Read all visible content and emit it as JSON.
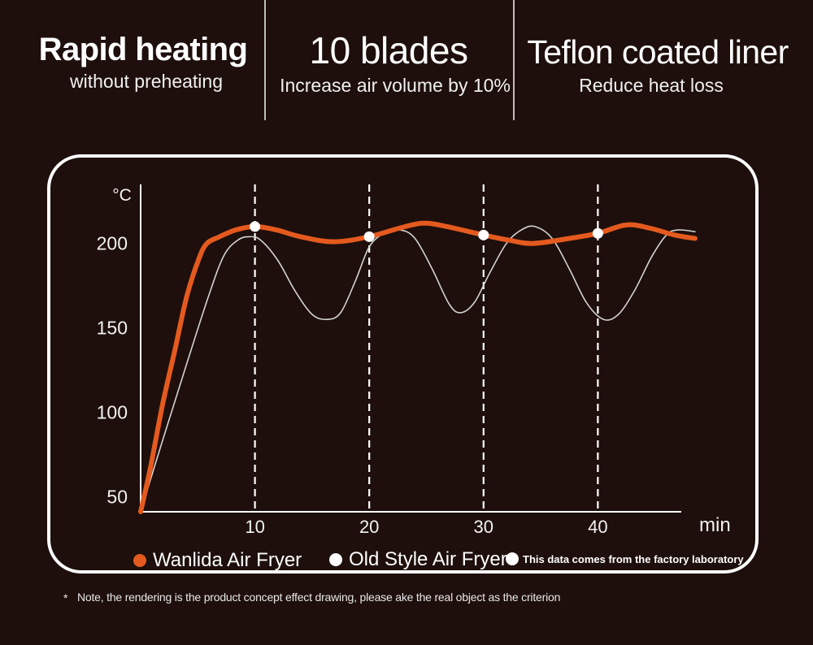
{
  "features": [
    {
      "title": "Rapid heating",
      "subtitle": "without preheating"
    },
    {
      "title": "10 blades",
      "subtitle": "Increase air volume by 10%"
    },
    {
      "title": "Teflon coated liner",
      "subtitle": "Reduce heat loss"
    }
  ],
  "chart_data": {
    "type": "line",
    "xlabel": "min",
    "ylabel": "°C",
    "xlim": [
      0,
      47.3
    ],
    "ylim": [
      41,
      235
    ],
    "xticks": [
      10,
      20,
      30,
      40
    ],
    "yticks": [
      50,
      100,
      150,
      200
    ],
    "grid": {
      "vertical_at_xticks": true,
      "style": "dashed",
      "horizontal": false
    },
    "legend_position": "bottom",
    "legend_note": "This data comes from the factory laboratory",
    "series": [
      {
        "name": "Wanlida Air Fryer",
        "color": "#e45a1e",
        "markers_at_x": [
          10,
          20,
          30,
          40
        ],
        "x": [
          0,
          0.85,
          1.9,
          3.0,
          4.05,
          5.1,
          5.8,
          6.9,
          8.3,
          10,
          11.9,
          14,
          16.9,
          20,
          22.6,
          24.7,
          26.8,
          30,
          32.2,
          34.3,
          37.5,
          40,
          42.5,
          44.6,
          46.7,
          48.5
        ],
        "y": [
          41,
          67,
          104,
          137,
          169,
          191,
          200,
          204,
          208,
          210,
          208,
          204,
          201,
          204,
          209,
          212,
          210,
          205,
          202,
          200,
          203,
          206,
          211,
          209,
          205,
          203
        ]
      },
      {
        "name": "Old Style Air Fryer",
        "color": "#d2d2d2",
        "x": [
          0,
          2,
          4,
          6,
          7.3,
          8.5,
          9.5,
          10.5,
          12,
          13.5,
          15,
          16.3,
          17.5,
          18.8,
          20,
          21.3,
          22.7,
          24,
          25.5,
          27,
          28,
          29.2,
          30.5,
          32,
          33.3,
          34.5,
          36,
          37.5,
          39,
          40.5,
          41.8,
          43.2,
          44.7,
          46,
          47,
          48.5
        ],
        "y": [
          41,
          85,
          128,
          170,
          193,
          202,
          204,
          202,
          190,
          172,
          158,
          155,
          159,
          178,
          198,
          206,
          208,
          203,
          185,
          164,
          159,
          165,
          182,
          200,
          208,
          210,
          203,
          185,
          165,
          155,
          158,
          172,
          192,
          205,
          208,
          207
        ]
      }
    ]
  },
  "note": {
    "marker": "*",
    "text": "Note, the rendering is the product concept effect drawing, please ake the real object as the criterion"
  },
  "colors": {
    "background": "#1e0f0c",
    "frame": "#ffffff",
    "text": "#f4f4f4",
    "divider": "#bdbdbd",
    "marker": "#ffffff",
    "axis": "#ffffff"
  }
}
